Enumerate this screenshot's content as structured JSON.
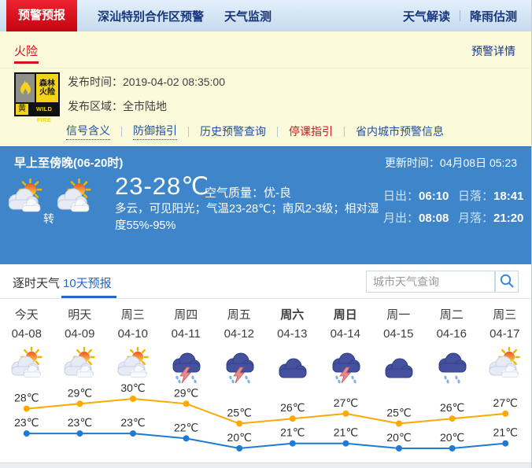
{
  "colors": {
    "accent_red": "#d8101e",
    "navy": "#16367f",
    "panel_yellow": "#fbfadb",
    "panel_blue": "#3e86c9",
    "link_blue": "#1f4f9e",
    "tab_active_blue": "#2569c4",
    "high_line": "#ffa800",
    "low_line": "#1f7ad4"
  },
  "topnav": {
    "active_item": "预警预报",
    "items": [
      "深汕特别合作区预警",
      "天气监测"
    ],
    "right_items": [
      "天气解读",
      "降雨估测"
    ]
  },
  "alert_header": {
    "title": "火险",
    "details_link": "预警详情"
  },
  "alert": {
    "badge": {
      "name_line1": "森林",
      "name_line2": "火险",
      "level": "黄",
      "en": "WILD FIRE"
    },
    "publish_time_label": "发布时间：",
    "publish_time": "2019-04-02 08:35:00",
    "area_label": "发布区域：",
    "area": "全市陆地",
    "links": [
      {
        "label": "信号含义",
        "style": "dotted"
      },
      {
        "label": "防御指引",
        "style": "dotted"
      },
      {
        "label": "历史预警查询",
        "style": "plain"
      },
      {
        "label": "停课指引",
        "style": "red"
      },
      {
        "label": "省内城市预警信息",
        "style": "plain"
      }
    ]
  },
  "current": {
    "period": "早上至傍晚(06-20时)",
    "update_label": "更新时间：",
    "update_time": "04月08日 05:23",
    "icons": [
      "partly_cloudy",
      "partly_cloudy"
    ],
    "transition": "转",
    "temp_range": "23-28℃",
    "air_quality_label": "空气质量：",
    "air_quality": "优-良",
    "description": "多云，可见阳光；气温23-28℃；南风2-3级；相对湿度55%-95%",
    "sun_moon": [
      {
        "label": "日出：",
        "value": "06:10"
      },
      {
        "label": "日落：",
        "value": "18:41"
      },
      {
        "label": "月出：",
        "value": "08:08"
      },
      {
        "label": "月落：",
        "value": "21:20"
      }
    ]
  },
  "tabs": [
    {
      "label": "逐时天气",
      "active": false
    },
    {
      "label": "10天预报",
      "active": true
    }
  ],
  "search": {
    "placeholder": "城市天气查询"
  },
  "chart_data": {
    "type": "line",
    "title": "10天预报气温曲线",
    "categories": [
      "今天",
      "明天",
      "周三",
      "周四",
      "周五",
      "周六",
      "周日",
      "周一",
      "周二",
      "周三"
    ],
    "dates": [
      "04-08",
      "04-09",
      "04-10",
      "04-11",
      "04-12",
      "04-13",
      "04-14",
      "04-15",
      "04-16",
      "04-17"
    ],
    "bold_categories": [
      5,
      6
    ],
    "icons": [
      "partly_cloudy",
      "partly_cloudy",
      "partly_cloudy",
      "thunderstorm",
      "thunderstorm",
      "cloudy",
      "thunderstorm",
      "cloudy",
      "rain",
      "partly_cloudy"
    ],
    "series": [
      {
        "name": "high",
        "color": "#ffa800",
        "values": [
          28,
          29,
          30,
          29,
          25,
          26,
          27,
          25,
          26,
          27
        ]
      },
      {
        "name": "low",
        "color": "#1f7ad4",
        "values": [
          23,
          23,
          23,
          22,
          20,
          21,
          21,
          20,
          20,
          21
        ]
      }
    ],
    "unit": "℃",
    "ylim": [
      19,
      31
    ],
    "grid": false,
    "legend": "none"
  }
}
